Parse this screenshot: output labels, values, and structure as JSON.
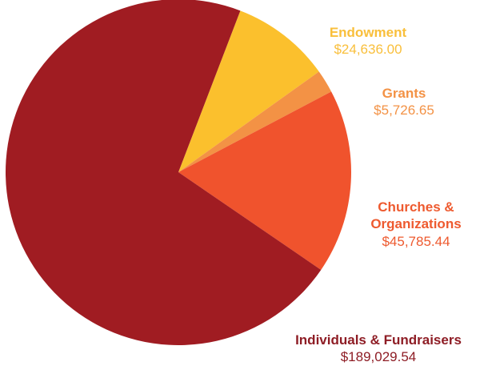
{
  "chart_data": {
    "type": "pie",
    "title": "",
    "slices": [
      {
        "label": "Endowment",
        "value": 24636.0,
        "value_text": "$24,636.00",
        "color": "#FBC02D",
        "label_color": "#F9BF3B"
      },
      {
        "label": "Grants",
        "value": 5726.65,
        "value_text": "$5,726.65",
        "color": "#F39245",
        "label_color": "#F39245"
      },
      {
        "label": "Churches & Organizations",
        "label_line1": "Churches &",
        "label_line2": "Organizations",
        "value": 45785.44,
        "value_text": "$45,785.44",
        "color": "#F0532D",
        "label_color": "#EE5A2F"
      },
      {
        "label": "Individuals & Fundraisers",
        "value": 189029.54,
        "value_text": "$189,029.54",
        "color": "#A01C22",
        "label_color": "#8E1D25"
      }
    ]
  }
}
